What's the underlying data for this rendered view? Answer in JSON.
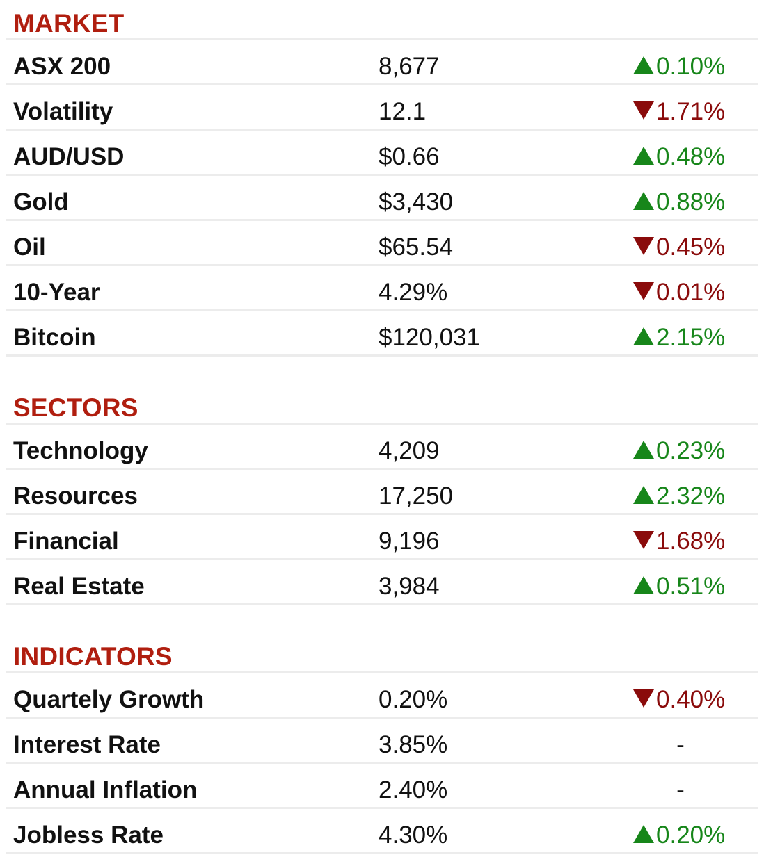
{
  "colors": {
    "heading": "#b01e0f",
    "up": "#17861a",
    "down": "#8a0b0b",
    "divider": "#ececec"
  },
  "sections": [
    {
      "title": "MARKET",
      "rows": [
        {
          "name": "ASX 200",
          "value": "8,677",
          "change": "0.10%",
          "direction": "up"
        },
        {
          "name": "Volatility",
          "value": "12.1",
          "change": "1.71%",
          "direction": "down"
        },
        {
          "name": "AUD/USD",
          "value": "$0.66",
          "change": "0.48%",
          "direction": "up"
        },
        {
          "name": "Gold",
          "value": "$3,430",
          "change": "0.88%",
          "direction": "up"
        },
        {
          "name": "Oil",
          "value": "$65.54",
          "change": "0.45%",
          "direction": "down"
        },
        {
          "name": "10-Year",
          "value": "4.29%",
          "change": "0.01%",
          "direction": "down"
        },
        {
          "name": "Bitcoin",
          "value": "$120,031",
          "change": "2.15%",
          "direction": "up"
        }
      ]
    },
    {
      "title": "SECTORS",
      "rows": [
        {
          "name": "Technology",
          "value": "4,209",
          "change": "0.23%",
          "direction": "up"
        },
        {
          "name": "Resources",
          "value": "17,250",
          "change": "2.32%",
          "direction": "up"
        },
        {
          "name": "Financial",
          "value": "9,196",
          "change": "1.68%",
          "direction": "down"
        },
        {
          "name": "Real Estate",
          "value": "3,984",
          "change": "0.51%",
          "direction": "up"
        }
      ]
    },
    {
      "title": "INDICATORS",
      "rows": [
        {
          "name": "Quartely Growth",
          "value": "0.20%",
          "change": "0.40%",
          "direction": "down"
        },
        {
          "name": "Interest Rate",
          "value": "3.85%",
          "change": "-",
          "direction": "none"
        },
        {
          "name": "Annual Inflation",
          "value": "2.40%",
          "change": "-",
          "direction": "none"
        },
        {
          "name": "Jobless Rate",
          "value": "4.30%",
          "change": "0.20%",
          "direction": "up"
        }
      ]
    }
  ]
}
